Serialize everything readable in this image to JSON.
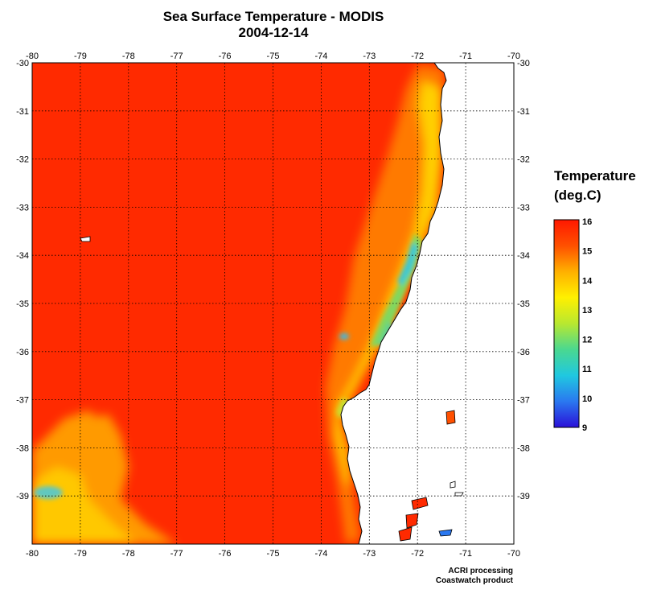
{
  "title": "Sea Surface Temperature - MODIS",
  "date": "2004-12-14",
  "legend": {
    "title_line1": "Temperature",
    "title_line2": "(deg.C)",
    "range": [
      9,
      16
    ],
    "ticks": [
      "16",
      "15",
      "14",
      "13",
      "12",
      "11",
      "10",
      "9"
    ],
    "colors": [
      "#2a10d8",
      "#2a78f0",
      "#20c8e0",
      "#4ad890",
      "#b8e830",
      "#fff000",
      "#ffb000",
      "#ff5000",
      "#ff1800"
    ]
  },
  "map": {
    "lon_range": [
      -80,
      -70
    ],
    "lat_range": [
      -40,
      -30
    ],
    "lon_ticks": [
      "-80",
      "-79",
      "-78",
      "-77",
      "-76",
      "-75",
      "-74",
      "-73",
      "-72",
      "-71",
      "-70"
    ],
    "lat_ticks": [
      "-30",
      "-31",
      "-32",
      "-33",
      "-34",
      "-35",
      "-36",
      "-37",
      "-38",
      "-39"
    ],
    "land_color": "#ffffff",
    "ocean_color": "#ff2a00",
    "grid": "dotted"
  },
  "credits": {
    "line1": "ACRI processing",
    "line2": "Coastwatch product"
  }
}
